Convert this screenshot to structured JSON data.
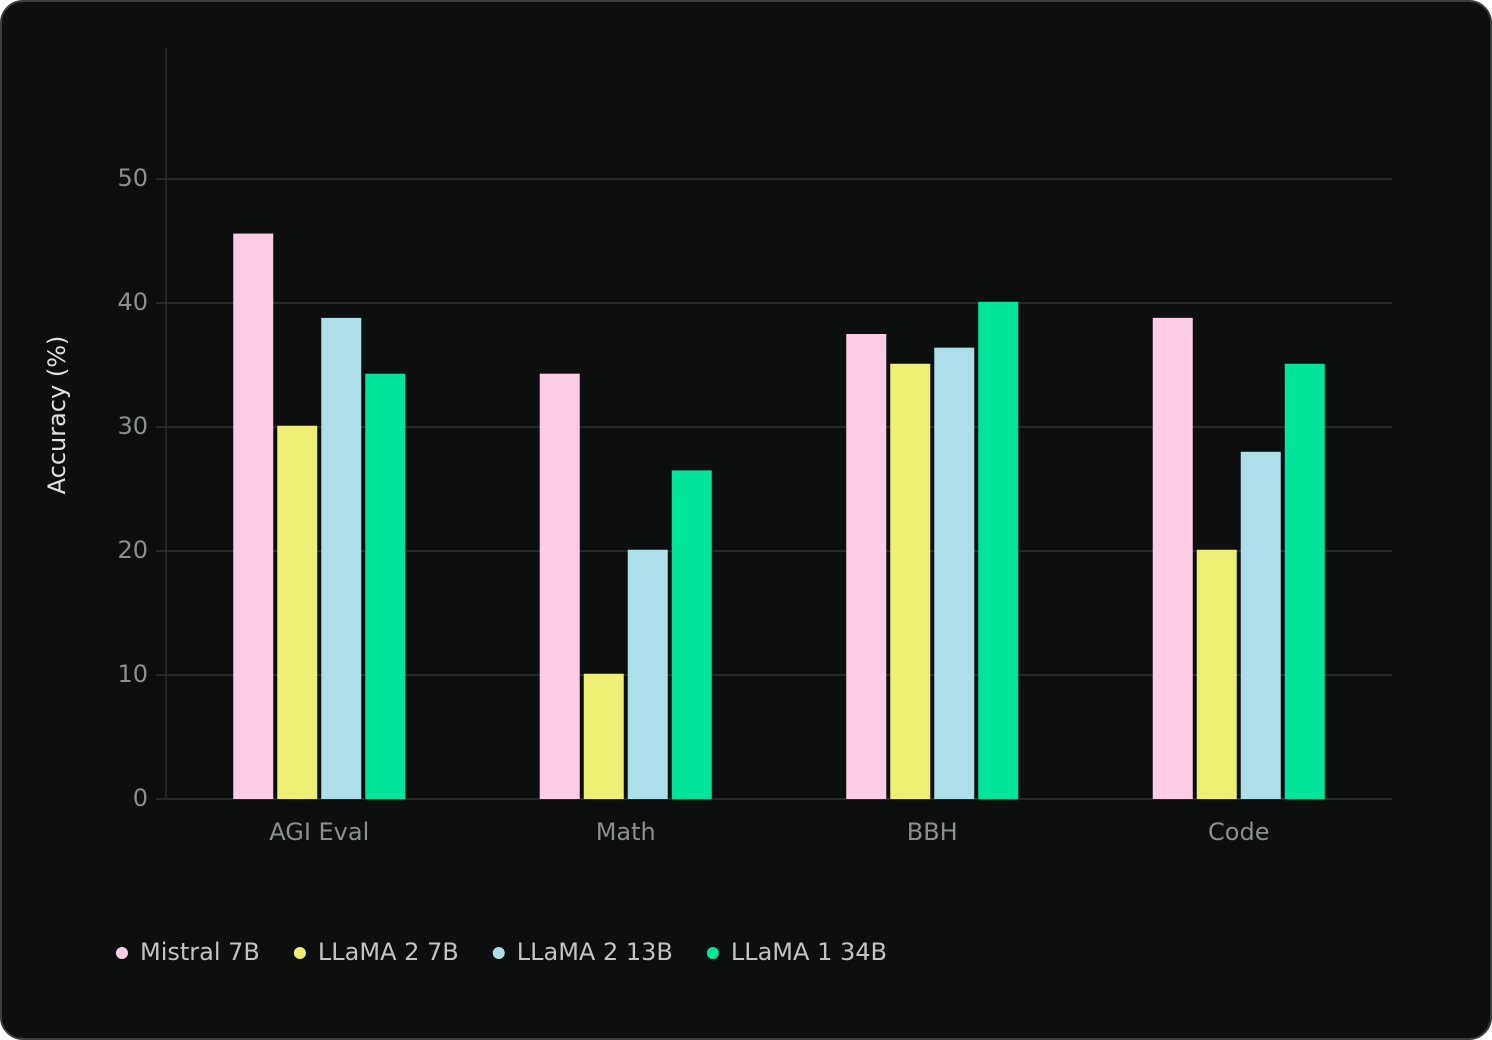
{
  "chart_data": {
    "type": "bar",
    "y_label": "Accuracy (%)",
    "categories": [
      "AGI Eval",
      "Math",
      "BBH",
      "Code"
    ],
    "series": [
      {
        "name": "Mistral 7B",
        "color": "#ffcce6",
        "values": [
          45.6,
          34.3,
          37.5,
          38.8
        ]
      },
      {
        "name": "LLaMA 2 7B",
        "color": "#eef075",
        "values": [
          30.1,
          10.1,
          35.1,
          20.1
        ]
      },
      {
        "name": "LLaMA 2 13B",
        "color": "#addfe9",
        "values": [
          38.8,
          20.1,
          36.4,
          28.0
        ]
      },
      {
        "name": "LLaMA 1 34B",
        "color": "#00e599",
        "values": [
          34.3,
          26.5,
          40.1,
          35.1
        ]
      }
    ],
    "ylim": [
      0,
      60
    ],
    "yticks": [
      0,
      10,
      20,
      30,
      40,
      50
    ],
    "grid": true,
    "legend": "bottom-left"
  }
}
